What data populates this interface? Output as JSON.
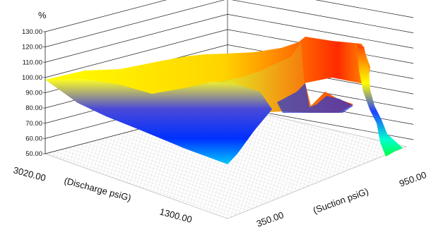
{
  "chart_data": {
    "type": "surface",
    "unit_label": "%",
    "zlim": [
      50,
      130
    ],
    "z_ticks": [
      "50.00",
      "60.00",
      "70.00",
      "80.00",
      "90.00",
      "100.00",
      "110.00",
      "120.00",
      "130.00"
    ],
    "x_axis": {
      "label": "(Discharge psiG)",
      "tick_labels": [
        "3020.00",
        "1300.00"
      ],
      "range": [
        1300,
        3020
      ]
    },
    "y_axis": {
      "label": "(Suction psiG)",
      "tick_labels": [
        "350.00",
        "950.00"
      ],
      "range": [
        350,
        950
      ]
    },
    "color_scale": [
      "#00d8ff",
      "#0030ff",
      "#ffff00",
      "#ff2a00",
      "#00ff60"
    ],
    "grid": true
  }
}
